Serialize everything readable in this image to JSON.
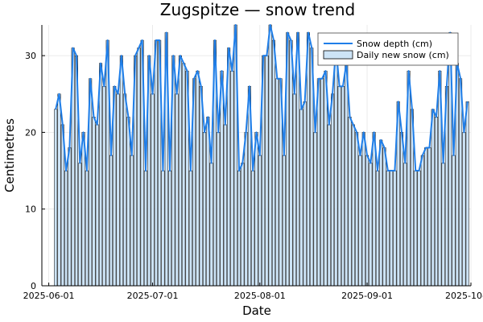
{
  "chart_data": {
    "type": "bar",
    "title": "Zugspitze — snow trend",
    "xlabel": "Date",
    "ylabel": "Centimetres",
    "x_start": "2025-06-03",
    "x_end": "2025-09-28",
    "xlim": [
      "2025-05-30",
      "2025-10-01"
    ],
    "ylim": [
      0,
      34
    ],
    "x_ticks": [
      "2025-06-01",
      "2025-07-01",
      "2025-08-01",
      "2025-09-01",
      "2025-10-01"
    ],
    "y_ticks": [
      0,
      10,
      20,
      30
    ],
    "grid": true,
    "legend_position": "top-right",
    "series": [
      {
        "name": "Snow depth (cm)",
        "kind": "line",
        "color": "#1f7ee8",
        "values": [
          23,
          25,
          21,
          15,
          18,
          31,
          30,
          16,
          20,
          15,
          27,
          22,
          21,
          29,
          26,
          32,
          17,
          26,
          25,
          30,
          25,
          22,
          17,
          30,
          31,
          32,
          15,
          30,
          25,
          32,
          32,
          15,
          33,
          15,
          30,
          25,
          30,
          29,
          28,
          15,
          27,
          28,
          26,
          20,
          22,
          16,
          32,
          20,
          28,
          21,
          31,
          28,
          34,
          15,
          16,
          20,
          26,
          15,
          20,
          17,
          30,
          30,
          34,
          32,
          27,
          27,
          17,
          33,
          32,
          25,
          33,
          23,
          24,
          33,
          31,
          20,
          27,
          27,
          28,
          21,
          25,
          31,
          26,
          26,
          29,
          22,
          21,
          20,
          17,
          20,
          17,
          16,
          20,
          15,
          19,
          18,
          15,
          15,
          15,
          24,
          20,
          16,
          28,
          23,
          15,
          15,
          17,
          18,
          18,
          23,
          22,
          28,
          16,
          26,
          33,
          17,
          29,
          27,
          20,
          24
        ],
        "display_value_labels": false
      },
      {
        "name": "Daily new snow (cm)",
        "kind": "bar",
        "color": "#cde4f7",
        "values": [
          23,
          25,
          21,
          15,
          18,
          31,
          30,
          16,
          20,
          15,
          27,
          22,
          21,
          29,
          26,
          32,
          17,
          26,
          25,
          30,
          25,
          22,
          17,
          30,
          31,
          32,
          15,
          30,
          25,
          32,
          32,
          15,
          33,
          15,
          30,
          25,
          30,
          29,
          28,
          15,
          27,
          28,
          26,
          20,
          22,
          16,
          32,
          20,
          28,
          21,
          31,
          28,
          34,
          15,
          16,
          20,
          26,
          15,
          20,
          17,
          30,
          30,
          34,
          32,
          27,
          27,
          17,
          33,
          32,
          25,
          33,
          23,
          24,
          33,
          31,
          20,
          27,
          27,
          28,
          21,
          25,
          31,
          26,
          26,
          29,
          22,
          21,
          20,
          17,
          20,
          17,
          16,
          20,
          15,
          19,
          18,
          15,
          15,
          15,
          24,
          20,
          16,
          28,
          23,
          15,
          15,
          17,
          18,
          18,
          23,
          22,
          28,
          16,
          26,
          33,
          17,
          29,
          27,
          20,
          24
        ]
      }
    ]
  }
}
